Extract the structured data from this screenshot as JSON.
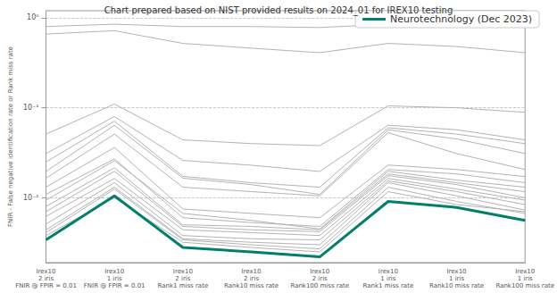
{
  "chart_data": {
    "type": "line",
    "title": "Chart prepared based on NIST provided results on 2024_01 for IREX10 testing",
    "y_label": "FNIR - False negative identification rate or Rank miss rate",
    "categories": [
      "Irex10\n2 iris\nFNIR @ FPIR = 0.01",
      "Irex10\n1 iris\nFNIR @ FPIR = 0.01",
      "Irex10\n2 iris\nRank1 miss rate",
      "Irex10\n2 iris\nRank10 miss rate",
      "Irex10\n2 iris\nRank100 miss rate",
      "Irex10\n1 iris\nRank1 miss rate",
      "Irex10\n1 iris\nRank10 miss rate",
      "Irex10\n1 iris\nRank100 miss rate"
    ],
    "log": "y",
    "grid": true,
    "legend": "upper right",
    "ylim": [
      0.0019,
      1.2
    ],
    "yticks": [
      {
        "value": 0.01,
        "label": "10⁻²"
      },
      {
        "value": 0.1,
        "label": "10⁻¹"
      },
      {
        "value": 1,
        "label": "10⁰"
      }
    ],
    "series": [
      {
        "color": "#b3b3b3",
        "values": [
          0.8,
          0.85,
          0.8,
          0.8,
          0.78,
          0.85,
          0.85,
          0.8
        ]
      },
      {
        "color": "#b3b3b3",
        "values": [
          0.66,
          0.72,
          0.52,
          0.46,
          0.41,
          0.52,
          0.48,
          0.41
        ]
      },
      {
        "color": "#b3b3b3",
        "values": [
          0.051,
          0.11,
          0.044,
          0.04,
          0.038,
          0.105,
          0.1,
          0.089
        ]
      },
      {
        "color": "#b3b3b3",
        "values": [
          0.031,
          0.08,
          0.026,
          0.023,
          0.0196,
          0.064,
          0.057,
          0.044
        ]
      },
      {
        "color": "#b3b3b3",
        "values": [
          0.025,
          0.071,
          0.0173,
          0.0147,
          0.0131,
          0.06,
          0.051,
          0.04
        ]
      },
      {
        "color": "#b3b3b3",
        "values": [
          0.0196,
          0.064,
          0.0165,
          0.014,
          0.0109,
          0.057,
          0.045,
          0.031
        ]
      },
      {
        "color": "#b3b3b3",
        "values": [
          0.0165,
          0.051,
          0.0131,
          0.0117,
          0.0105,
          0.053,
          0.031,
          0.0206
        ]
      },
      {
        "color": "#b3b3b3",
        "values": [
          0.0131,
          0.0362,
          0.0075,
          0.0067,
          0.006,
          0.0231,
          0.0206,
          0.0172
        ]
      },
      {
        "color": "#b3b3b3",
        "values": [
          0.0109,
          0.027,
          0.006,
          0.0053,
          0.0048,
          0.0206,
          0.0184,
          0.0147
        ]
      },
      {
        "color": "#b3b3b3",
        "values": [
          0.0094,
          0.0258,
          0.0067,
          0.0056,
          0.0045,
          0.0197,
          0.0157,
          0.0131
        ]
      },
      {
        "color": "#b3b3b3",
        "values": [
          0.008,
          0.0215,
          0.005,
          0.0048,
          0.0044,
          0.0184,
          0.0147,
          0.0117
        ]
      },
      {
        "color": "#b3b3b3",
        "values": [
          0.007,
          0.0197,
          0.0048,
          0.0044,
          0.0042,
          0.0176,
          0.014,
          0.01
        ]
      },
      {
        "color": "#b3b3b3",
        "values": [
          0.0062,
          0.0164,
          0.0044,
          0.0041,
          0.0038,
          0.0164,
          0.0125,
          0.0094
        ]
      },
      {
        "color": "#b3b3b3",
        "values": [
          0.0051,
          0.0147,
          0.0038,
          0.0035,
          0.0034,
          0.0154,
          0.0117,
          0.0084
        ]
      },
      {
        "color": "#b3b3b3",
        "values": [
          0.0044,
          0.0131,
          0.0035,
          0.0032,
          0.003,
          0.0147,
          0.0105,
          0.0073
        ]
      },
      {
        "color": "#b3b3b3",
        "values": [
          0.0041,
          0.0125,
          0.0034,
          0.003,
          0.0027,
          0.0131,
          0.0091,
          0.0067
        ]
      },
      {
        "color": "#b3b3b3",
        "values": [
          0.0038,
          0.01,
          0.0032,
          0.0028,
          0.0025,
          0.0117,
          0.0084,
          0.007
        ]
      },
      {
        "name": "Neurotechnology (Dec 2023)",
        "color": "#00806b",
        "values": [
          0.0034,
          0.0105,
          0.0028,
          0.0025,
          0.0022,
          0.0091,
          0.0078,
          0.0056
        ]
      }
    ]
  }
}
